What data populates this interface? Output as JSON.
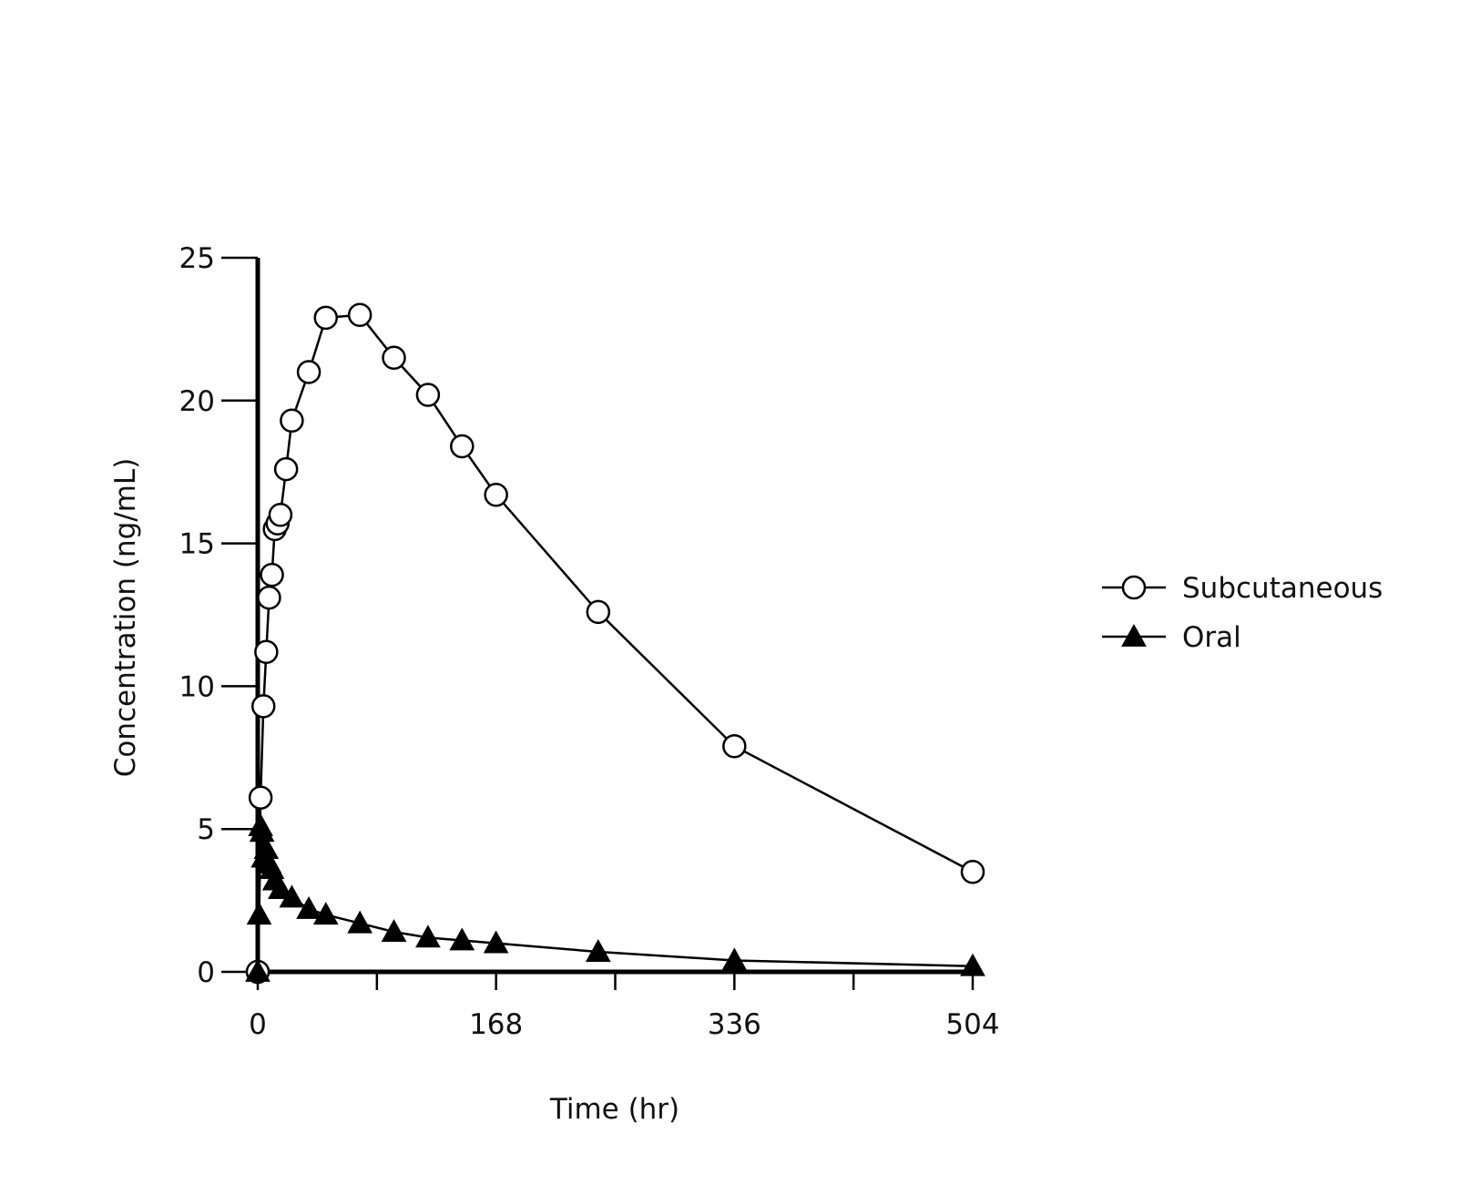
{
  "chart_data": {
    "type": "line",
    "title": "",
    "xlabel": "Time (hr)",
    "ylabel": "Concentration (ng/mL)",
    "xlim": [
      0,
      504
    ],
    "ylim": [
      0,
      25
    ],
    "x_ticks": [
      0,
      168,
      336,
      504
    ],
    "x_minor_ticks": [
      84,
      252,
      420
    ],
    "y_ticks": [
      0,
      5,
      10,
      15,
      20,
      25
    ],
    "grid": false,
    "legend_position": "right",
    "series": [
      {
        "name": "Subcutaneous",
        "marker": "open-circle",
        "color": "#000000",
        "x": [
          0,
          2,
          4,
          6,
          8,
          10,
          12,
          14,
          16,
          20,
          24,
          36,
          48,
          72,
          96,
          120,
          144,
          168,
          240,
          336,
          504
        ],
        "y": [
          0,
          6.1,
          9.3,
          11.2,
          13.1,
          13.9,
          15.5,
          15.7,
          16.0,
          17.6,
          19.3,
          21.0,
          22.9,
          23.0,
          21.5,
          20.2,
          18.4,
          16.7,
          12.6,
          7.9,
          3.5
        ]
      },
      {
        "name": "Oral",
        "marker": "filled-triangle",
        "color": "#000000",
        "x": [
          0,
          1,
          2,
          3,
          4,
          6,
          8,
          10,
          12,
          16,
          24,
          36,
          48,
          72,
          96,
          120,
          144,
          168,
          240,
          336,
          504
        ],
        "y": [
          0,
          2.0,
          5.1,
          4.9,
          4.0,
          4.3,
          3.8,
          3.6,
          3.2,
          2.9,
          2.6,
          2.2,
          2.0,
          1.7,
          1.4,
          1.2,
          1.1,
          1.0,
          0.7,
          0.4,
          0.2
        ]
      }
    ]
  }
}
